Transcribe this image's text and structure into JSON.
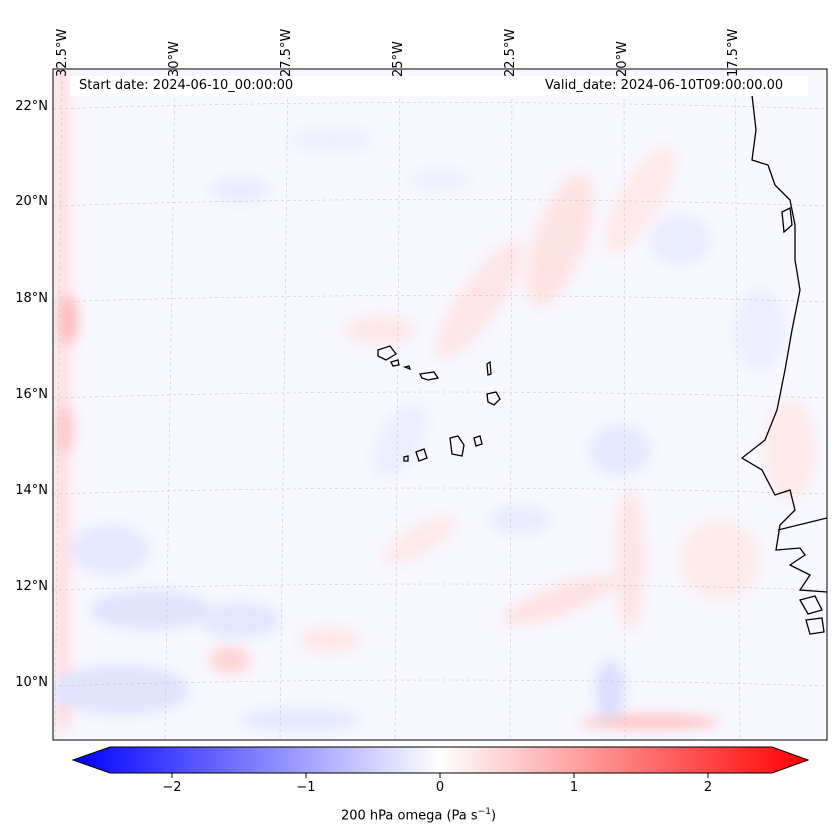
{
  "map": {
    "start_date": "Start date: 2024-06-10_00:00:00",
    "valid_date": "Valid_date: 2024-06-10T09:00:00.00",
    "lon_labels": [
      "32.5°W",
      "30°W",
      "27.5°W",
      "25°W",
      "22.5°W",
      "20°W",
      "17.5°W"
    ],
    "lat_labels": [
      "22°N",
      "20°N",
      "18°N",
      "16°N",
      "14°N",
      "12°N",
      "10°N"
    ],
    "colorbar": {
      "ticks": [
        "−2",
        "−1",
        "0",
        "1",
        "2"
      ],
      "tick_values": [
        -2,
        -1,
        0,
        1,
        2
      ],
      "range": [
        -2.5,
        2.5
      ],
      "label_prefix": "200 hPa omega (Pa s",
      "label_exp": "−1",
      "label_suffix": ")",
      "colors": {
        "neg": "#0000ff",
        "zero": "#ffffff",
        "pos": "#ff0000"
      }
    }
  }
}
